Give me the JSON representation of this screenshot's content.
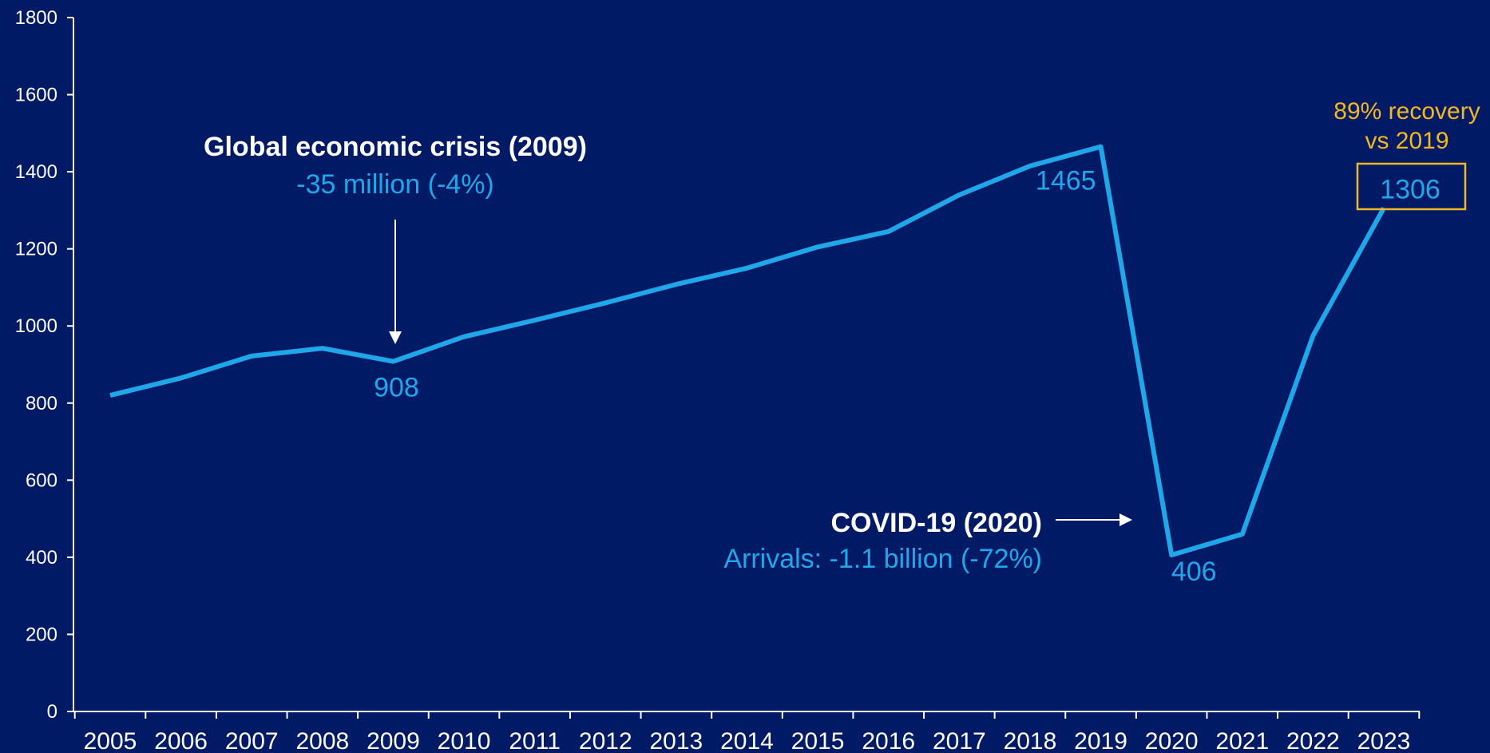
{
  "chart_data": {
    "type": "line",
    "x": [
      "2005",
      "2006",
      "2007",
      "2008",
      "2009",
      "2010",
      "2011",
      "2012",
      "2013",
      "2014",
      "2015",
      "2016",
      "2017",
      "2018",
      "2019",
      "2020",
      "2021",
      "2022",
      "2023"
    ],
    "values": [
      820,
      865,
      922,
      942,
      908,
      972,
      1015,
      1060,
      1108,
      1150,
      1205,
      1245,
      1340,
      1415,
      1465,
      406,
      460,
      975,
      1306
    ],
    "ylim": [
      0,
      1800
    ],
    "yticks": [
      0,
      200,
      400,
      600,
      800,
      1000,
      1200,
      1400,
      1600,
      1800
    ],
    "title": "",
    "xlabel": "",
    "ylabel": "",
    "grid": false,
    "line_color": "#1FA7EA",
    "data_labels": [
      {
        "year": "2009",
        "text": "908"
      },
      {
        "year": "2019",
        "text": "1465"
      },
      {
        "year": "2020",
        "text": "406"
      },
      {
        "year": "2023",
        "text": "1306"
      }
    ],
    "annotations": {
      "crisis": {
        "title": "Global economic crisis (2009)",
        "subtitle": "-35 million (-4%)"
      },
      "covid": {
        "title": "COVID-19 (2020)",
        "subtitle": "Arrivals: -1.1 billion (-72%)"
      },
      "recovery": {
        "line1": "89% recovery",
        "line2": "vs 2019"
      }
    },
    "colors": {
      "background": "#001A66",
      "accent": "#1FA7EA",
      "highlight": "#F2B81F",
      "text": "#FFFFFF"
    }
  }
}
